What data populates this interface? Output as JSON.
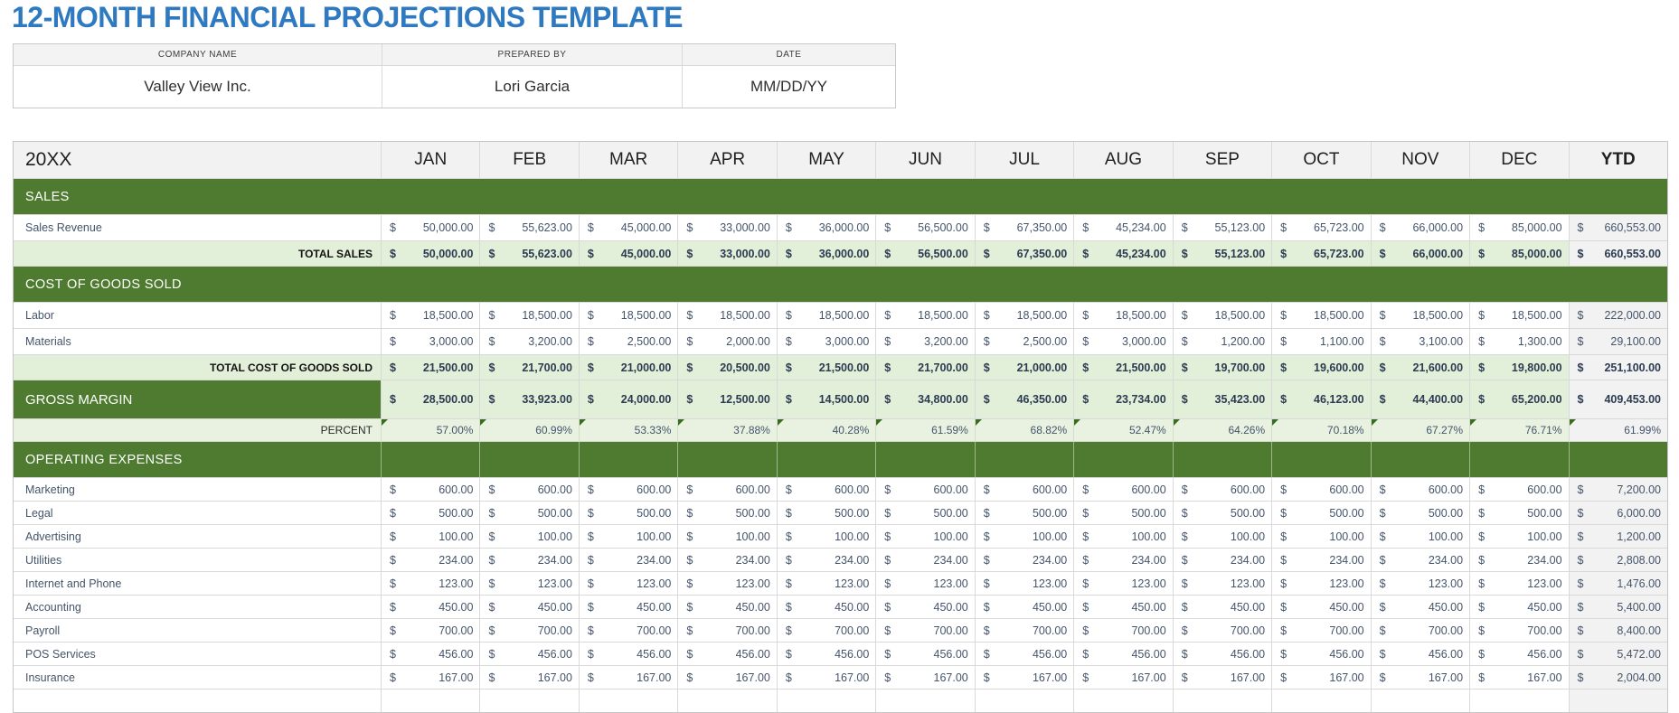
{
  "title": "12-MONTH FINANCIAL PROJECTIONS TEMPLATE",
  "company_info": {
    "headers": [
      "COMPANY NAME",
      "PREPARED BY",
      "DATE"
    ],
    "values": [
      "Valley View Inc.",
      "Lori Garcia",
      "MM/DD/YY"
    ]
  },
  "colors": {
    "title_blue": "#2E79C0",
    "section_green": "#4E7B2F",
    "total_row_green": "#E2EFD9",
    "percent_row_green": "#E9F2E1",
    "header_gray": "#F2F2F2",
    "ytd_column_gray": "#F2F2F2",
    "value_text": "#44546A",
    "note_triangle_green": "#3A6B22"
  },
  "table": {
    "year_label": "20XX",
    "months": [
      "JAN",
      "FEB",
      "MAR",
      "APR",
      "MAY",
      "JUN",
      "JUL",
      "AUG",
      "SEP",
      "OCT",
      "NOV",
      "DEC"
    ],
    "ytd_label": "YTD",
    "currency_symbol": "$",
    "rows": [
      {
        "type": "section",
        "label": "SALES",
        "grid": false
      },
      {
        "type": "data",
        "label": "Sales Revenue",
        "values": [
          "50,000.00",
          "55,623.00",
          "45,000.00",
          "33,000.00",
          "36,000.00",
          "56,500.00",
          "67,350.00",
          "45,234.00",
          "55,123.00",
          "65,723.00",
          "66,000.00",
          "85,000.00"
        ],
        "ytd": "660,553.00"
      },
      {
        "type": "total",
        "label": "TOTAL SALES",
        "values": [
          "50,000.00",
          "55,623.00",
          "45,000.00",
          "33,000.00",
          "36,000.00",
          "56,500.00",
          "67,350.00",
          "45,234.00",
          "55,123.00",
          "65,723.00",
          "66,000.00",
          "85,000.00"
        ],
        "ytd": "660,553.00"
      },
      {
        "type": "section",
        "label": "COST OF GOODS SOLD",
        "grid": false
      },
      {
        "type": "data",
        "label": "Labor",
        "values": [
          "18,500.00",
          "18,500.00",
          "18,500.00",
          "18,500.00",
          "18,500.00",
          "18,500.00",
          "18,500.00",
          "18,500.00",
          "18,500.00",
          "18,500.00",
          "18,500.00",
          "18,500.00"
        ],
        "ytd": "222,000.00"
      },
      {
        "type": "data",
        "label": "Materials",
        "values": [
          "3,000.00",
          "3,200.00",
          "2,500.00",
          "2,000.00",
          "3,000.00",
          "3,200.00",
          "2,500.00",
          "3,000.00",
          "1,200.00",
          "1,100.00",
          "3,100.00",
          "1,300.00"
        ],
        "ytd": "29,100.00"
      },
      {
        "type": "total",
        "label": "TOTAL COST OF GOODS SOLD",
        "values": [
          "21,500.00",
          "21,700.00",
          "21,000.00",
          "20,500.00",
          "21,500.00",
          "21,700.00",
          "21,000.00",
          "21,500.00",
          "19,700.00",
          "19,600.00",
          "21,600.00",
          "19,800.00"
        ],
        "ytd": "251,100.00"
      },
      {
        "type": "gross-margin",
        "label": "GROSS MARGIN",
        "values": [
          "28,500.00",
          "33,923.00",
          "24,000.00",
          "12,500.00",
          "14,500.00",
          "34,800.00",
          "46,350.00",
          "23,734.00",
          "35,423.00",
          "46,123.00",
          "44,400.00",
          "65,200.00"
        ],
        "ytd": "409,453.00"
      },
      {
        "type": "percent",
        "label": "PERCENT",
        "values": [
          "57.00%",
          "60.99%",
          "53.33%",
          "37.88%",
          "40.28%",
          "61.59%",
          "68.82%",
          "52.47%",
          "64.26%",
          "70.18%",
          "67.27%",
          "76.71%"
        ],
        "ytd": "61.99%"
      },
      {
        "type": "section",
        "label": "OPERATING EXPENSES",
        "grid": true
      },
      {
        "type": "expense",
        "label": "Marketing",
        "values": [
          "600.00",
          "600.00",
          "600.00",
          "600.00",
          "600.00",
          "600.00",
          "600.00",
          "600.00",
          "600.00",
          "600.00",
          "600.00",
          "600.00"
        ],
        "ytd": "7,200.00"
      },
      {
        "type": "expense",
        "label": "Legal",
        "values": [
          "500.00",
          "500.00",
          "500.00",
          "500.00",
          "500.00",
          "500.00",
          "500.00",
          "500.00",
          "500.00",
          "500.00",
          "500.00",
          "500.00"
        ],
        "ytd": "6,000.00"
      },
      {
        "type": "expense",
        "label": "Advertising",
        "values": [
          "100.00",
          "100.00",
          "100.00",
          "100.00",
          "100.00",
          "100.00",
          "100.00",
          "100.00",
          "100.00",
          "100.00",
          "100.00",
          "100.00"
        ],
        "ytd": "1,200.00"
      },
      {
        "type": "expense",
        "label": "Utilities",
        "values": [
          "234.00",
          "234.00",
          "234.00",
          "234.00",
          "234.00",
          "234.00",
          "234.00",
          "234.00",
          "234.00",
          "234.00",
          "234.00",
          "234.00"
        ],
        "ytd": "2,808.00"
      },
      {
        "type": "expense",
        "label": "Internet and Phone",
        "values": [
          "123.00",
          "123.00",
          "123.00",
          "123.00",
          "123.00",
          "123.00",
          "123.00",
          "123.00",
          "123.00",
          "123.00",
          "123.00",
          "123.00"
        ],
        "ytd": "1,476.00"
      },
      {
        "type": "expense",
        "label": "Accounting",
        "values": [
          "450.00",
          "450.00",
          "450.00",
          "450.00",
          "450.00",
          "450.00",
          "450.00",
          "450.00",
          "450.00",
          "450.00",
          "450.00",
          "450.00"
        ],
        "ytd": "5,400.00"
      },
      {
        "type": "expense",
        "label": "Payroll",
        "values": [
          "700.00",
          "700.00",
          "700.00",
          "700.00",
          "700.00",
          "700.00",
          "700.00",
          "700.00",
          "700.00",
          "700.00",
          "700.00",
          "700.00"
        ],
        "ytd": "8,400.00"
      },
      {
        "type": "expense",
        "label": "POS Services",
        "values": [
          "456.00",
          "456.00",
          "456.00",
          "456.00",
          "456.00",
          "456.00",
          "456.00",
          "456.00",
          "456.00",
          "456.00",
          "456.00",
          "456.00"
        ],
        "ytd": "5,472.00"
      },
      {
        "type": "expense",
        "label": "Insurance",
        "values": [
          "167.00",
          "167.00",
          "167.00",
          "167.00",
          "167.00",
          "167.00",
          "167.00",
          "167.00",
          "167.00",
          "167.00",
          "167.00",
          "167.00"
        ],
        "ytd": "2,004.00"
      }
    ]
  }
}
